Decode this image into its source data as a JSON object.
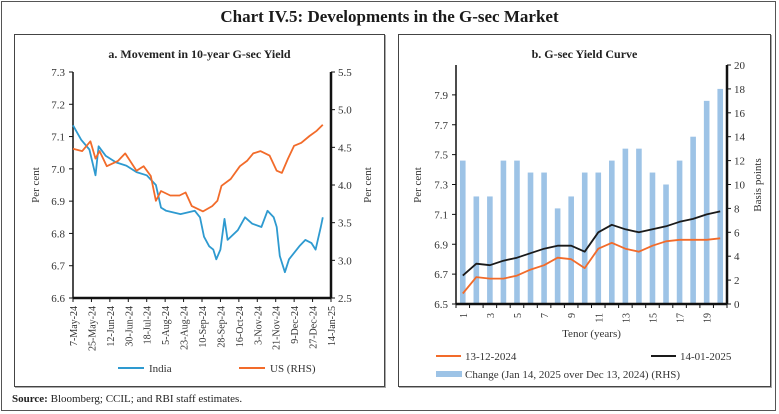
{
  "title": "Chart IV.5: Developments in the G-sec Market",
  "source_label": "Source:",
  "source_text": "Bloomberg; CCIL; and RBI staff estimates.",
  "chart_data": [
    {
      "type": "line",
      "title": "a. Movement in 10-year G-sec Yield",
      "xlabel": "",
      "ylabel": "Per cent",
      "y2label": "Per cent",
      "ylim": [
        6.6,
        7.3
      ],
      "y2lim": [
        2.5,
        5.5
      ],
      "yticks": [
        "6.6",
        "6.7",
        "6.8",
        "6.9",
        "7.0",
        "7.1",
        "7.2",
        "7.3"
      ],
      "y2ticks": [
        "2.5",
        "3.0",
        "3.5",
        "4.0",
        "4.5",
        "5.0",
        "5.5"
      ],
      "xticks": [
        "7-May-24",
        "25-May-24",
        "12-Jun-24",
        "30-Jun-24",
        "18-Jul-24",
        "5-Aug-24",
        "23-Aug-24",
        "10-Sep-24",
        "28-Sep-24",
        "16-Oct-24",
        "3-Nov-24",
        "21-Nov-24",
        "9-Dec-24",
        "27-Dec-24",
        "14-Jan-25"
      ],
      "x_day_range": [
        0,
        252
      ],
      "legend_position": "bottom",
      "series": [
        {
          "name": "India",
          "axis": "left",
          "color": "#2E9AD0",
          "x_days": [
            0,
            8,
            16,
            22,
            25,
            32,
            42,
            52,
            62,
            72,
            81,
            86,
            91,
            105,
            119,
            124,
            128,
            133,
            137,
            140,
            144,
            148,
            151,
            161,
            168,
            175,
            184,
            190,
            196,
            199,
            202,
            207,
            211,
            221,
            227,
            233,
            237,
            242,
            244
          ],
          "values": [
            7.135,
            7.09,
            7.06,
            6.98,
            7.07,
            7.04,
            7.02,
            7.01,
            6.99,
            6.98,
            6.95,
            6.88,
            6.87,
            6.86,
            6.87,
            6.85,
            6.79,
            6.76,
            6.75,
            6.72,
            6.75,
            6.845,
            6.78,
            6.81,
            6.85,
            6.83,
            6.82,
            6.87,
            6.85,
            6.82,
            6.73,
            6.68,
            6.72,
            6.76,
            6.78,
            6.77,
            6.75,
            6.82,
            6.85
          ]
        },
        {
          "name": "US (RHS)",
          "axis": "right",
          "color": "#F26B2A",
          "x_days": [
            0,
            9,
            17,
            22,
            26,
            33,
            44,
            51,
            62,
            69,
            76,
            81,
            86,
            95,
            104,
            110,
            116,
            127,
            136,
            141,
            145,
            154,
            163,
            170,
            176,
            183,
            192,
            199,
            204,
            210,
            216,
            223,
            231,
            238,
            244
          ],
          "values": [
            4.48,
            4.45,
            4.58,
            4.35,
            4.45,
            4.25,
            4.32,
            4.42,
            4.19,
            4.25,
            4.12,
            3.79,
            3.92,
            3.86,
            3.86,
            3.9,
            3.72,
            3.65,
            3.72,
            3.79,
            3.99,
            4.08,
            4.25,
            4.32,
            4.42,
            4.45,
            4.39,
            4.19,
            4.16,
            4.35,
            4.52,
            4.56,
            4.65,
            4.72,
            4.8
          ]
        }
      ]
    },
    {
      "type": "bar+line",
      "title": "b. G-sec Yield Curve",
      "xlabel": "Tenor (years)",
      "ylabel": "Per cent",
      "y2label": "Basis points",
      "ylim": [
        6.5,
        8.1
      ],
      "y2lim": [
        0,
        20
      ],
      "yticks": [
        "6.5",
        "6.7",
        "6.9",
        "7.1",
        "7.3",
        "7.5",
        "7.7",
        "7.9"
      ],
      "y2ticks": [
        "0",
        "2",
        "4",
        "6",
        "8",
        "10",
        "12",
        "14",
        "16",
        "18",
        "20"
      ],
      "categories": [
        1,
        2,
        3,
        4,
        5,
        6,
        7,
        8,
        9,
        10,
        11,
        12,
        13,
        14,
        15,
        16,
        17,
        18,
        19,
        20
      ],
      "xtick_labels": [
        "1",
        "3",
        "5",
        "7",
        "9",
        "11",
        "13",
        "15",
        "17",
        "19"
      ],
      "legend_position": "bottom",
      "series": [
        {
          "name": "13-12-2024",
          "type": "line",
          "axis": "left",
          "color": "#F26B2A",
          "values": [
            6.57,
            6.68,
            6.67,
            6.67,
            6.69,
            6.73,
            6.76,
            6.81,
            6.8,
            6.74,
            6.87,
            6.91,
            6.87,
            6.85,
            6.89,
            6.92,
            6.93,
            6.93,
            6.93,
            6.94
          ]
        },
        {
          "name": "14-01-2025",
          "type": "line",
          "axis": "left",
          "color": "#1A1A1A",
          "values": [
            6.69,
            6.77,
            6.76,
            6.79,
            6.81,
            6.84,
            6.87,
            6.89,
            6.89,
            6.85,
            6.98,
            7.03,
            7.0,
            6.98,
            7.0,
            7.02,
            7.05,
            7.07,
            7.1,
            7.12
          ]
        },
        {
          "name": "Change (Jan 14, 2025 over Dec 13, 2024) (RHS)",
          "type": "bar",
          "axis": "right",
          "color": "#9DC3E6",
          "values": [
            12,
            9,
            9,
            12,
            12,
            11,
            11,
            8,
            9,
            11,
            11,
            12,
            13,
            13,
            11,
            10,
            12,
            14,
            17,
            18
          ]
        }
      ]
    }
  ]
}
